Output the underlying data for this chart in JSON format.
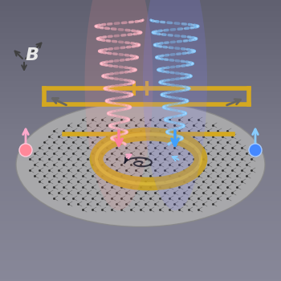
{
  "bg_color_top": "#6a6a7a",
  "bg_color_bottom": "#909090",
  "graphene_color": "#aaaaaa",
  "graphene_dot_color": "#333333",
  "gold_ring_color": "#c8a020",
  "gold_wire_color": "#d4a820",
  "pink_beam_color": "#ffb0c0",
  "blue_beam_color": "#80c8ff",
  "pink_core_color": "#ff80a0",
  "blue_core_color": "#40a0ff",
  "arrow_pink": "#ffaacc",
  "arrow_blue": "#88ccff",
  "B_label_color": "#e8e8e8",
  "axis_arrow_color": "#404040"
}
